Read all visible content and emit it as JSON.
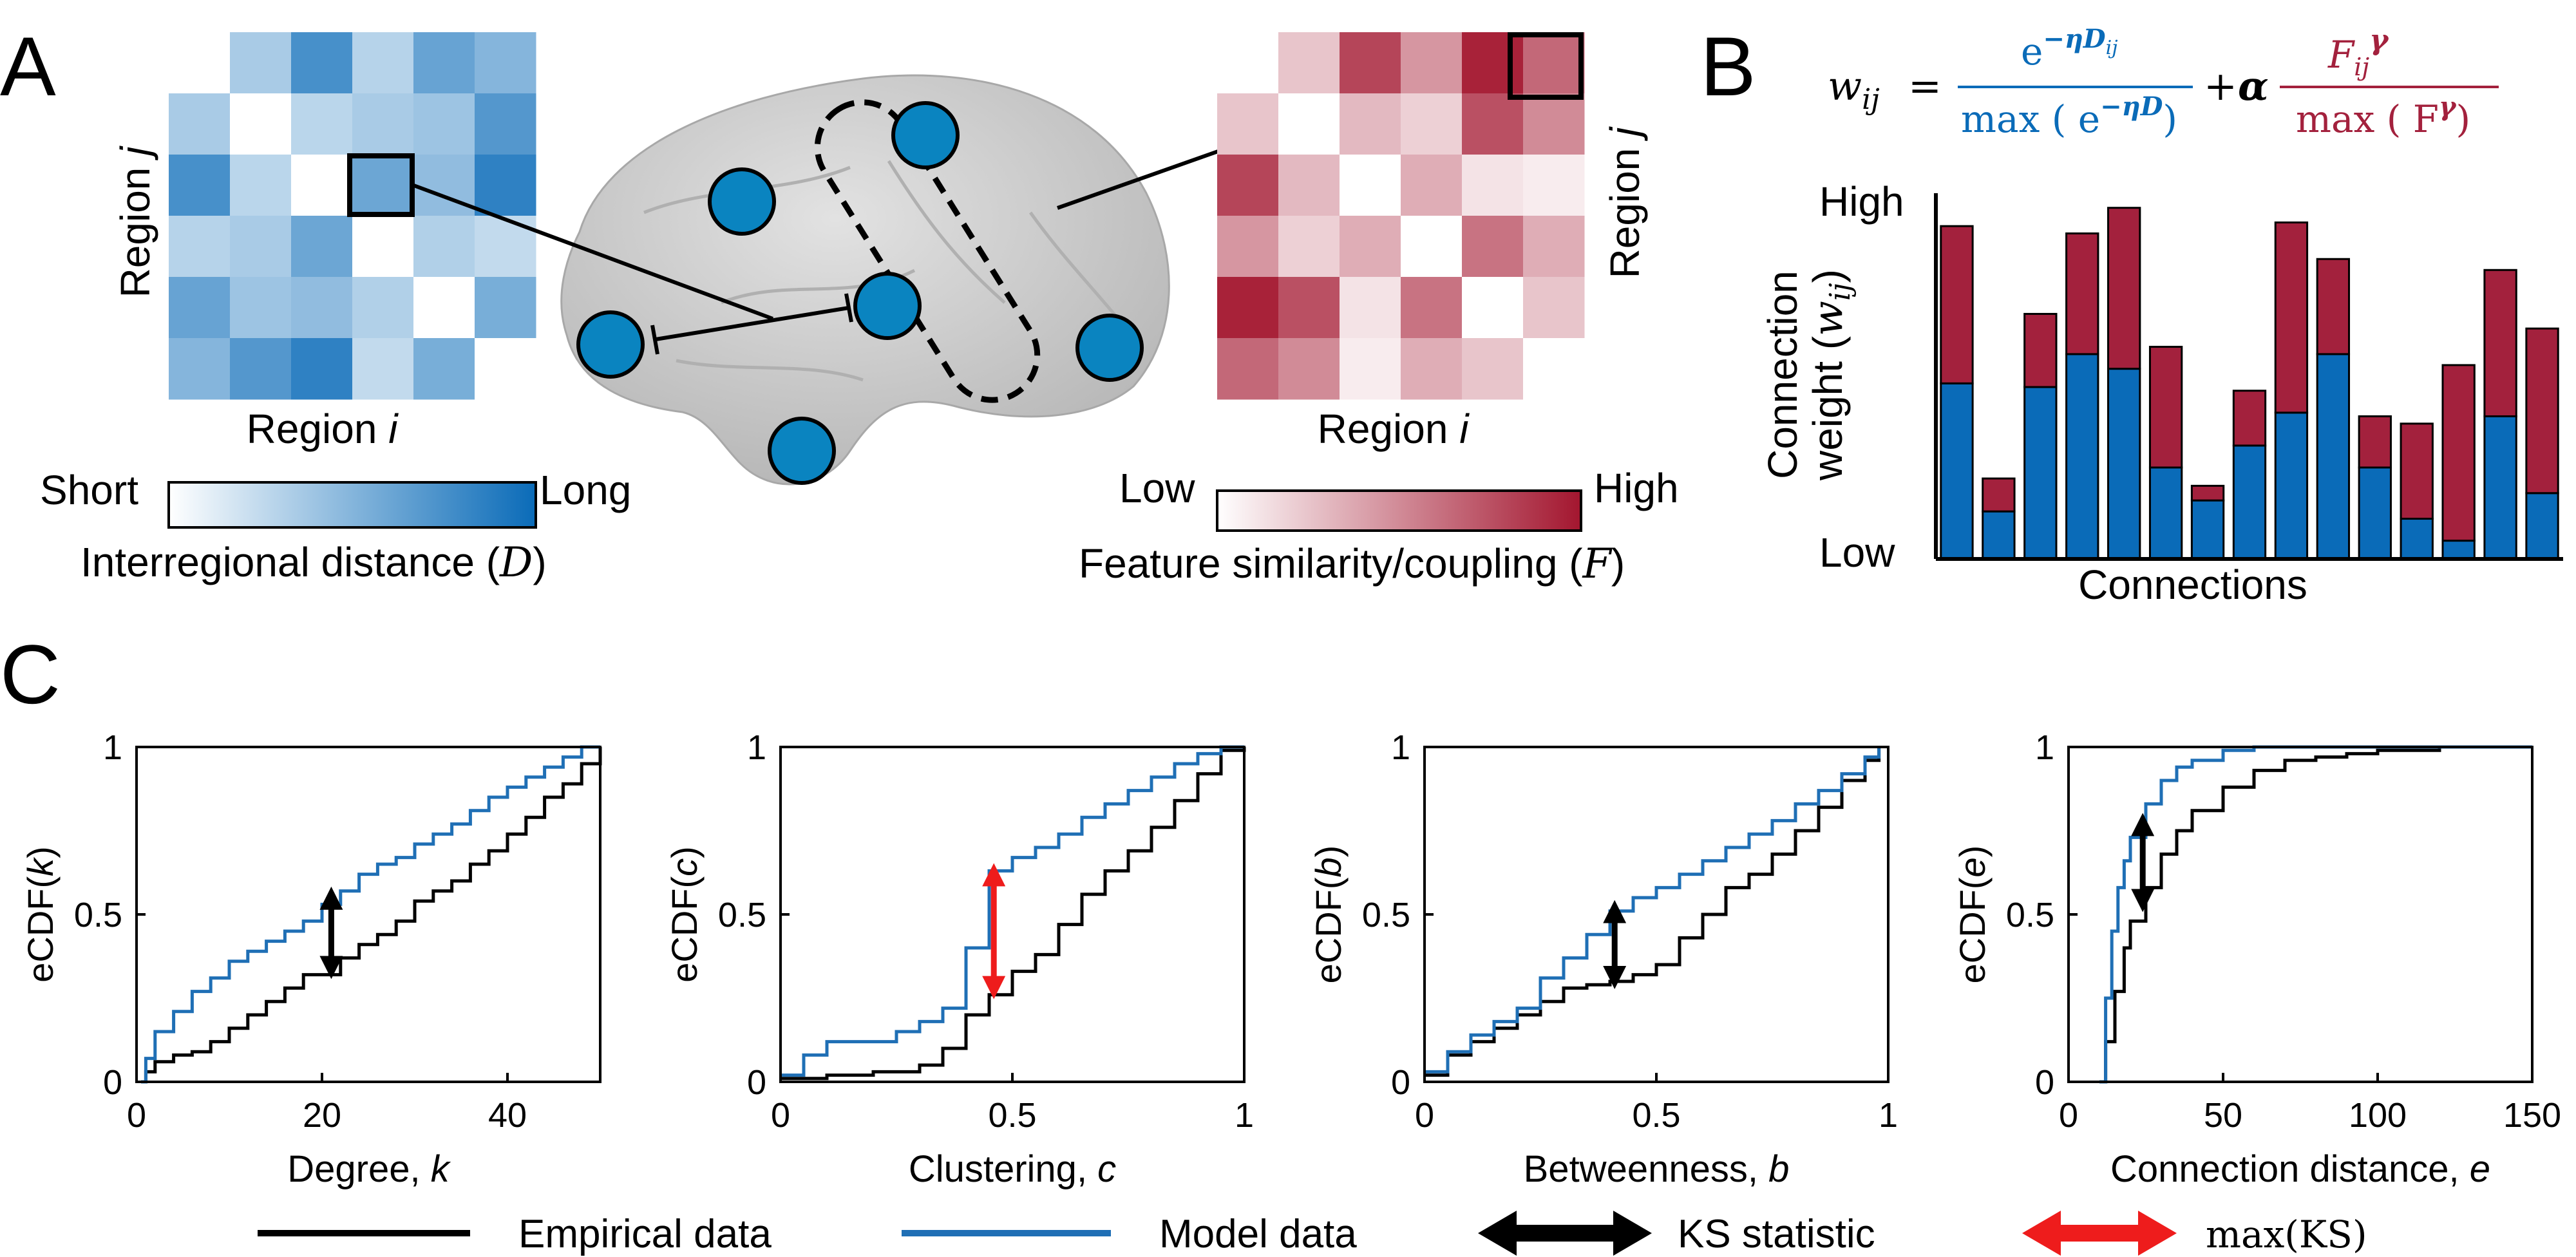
{
  "panels": {
    "A": {
      "letter": "A",
      "distance_axis": {
        "x": "Region",
        "x_var": "i",
        "y": "Region",
        "y_var": "j"
      },
      "similarity_axis": {
        "x": "Region",
        "x_var": "i",
        "y": "Region",
        "y_var": "j"
      },
      "distance_colorbar": {
        "low": "Short",
        "high": "Long",
        "caption": "Interregional distance",
        "symbol": "D"
      },
      "similarity_colorbar": {
        "low": "Low",
        "high": "High",
        "caption": "Feature similarity/coupling",
        "symbol": "F"
      },
      "distance_matrix": [
        [
          0.0,
          0.35,
          0.75,
          0.3,
          0.62,
          0.5
        ],
        [
          0.35,
          0.0,
          0.28,
          0.35,
          0.4,
          0.7
        ],
        [
          0.75,
          0.28,
          0.0,
          0.6,
          0.45,
          0.85
        ],
        [
          0.3,
          0.35,
          0.6,
          0.0,
          0.32,
          0.25
        ],
        [
          0.62,
          0.4,
          0.45,
          0.32,
          0.0,
          0.55
        ],
        [
          0.5,
          0.7,
          0.85,
          0.25,
          0.55,
          0.0
        ]
      ],
      "similarity_matrix": [
        [
          0.0,
          0.25,
          0.8,
          0.45,
          0.95,
          0.65
        ],
        [
          0.25,
          0.0,
          0.3,
          0.2,
          0.75,
          0.5
        ],
        [
          0.8,
          0.3,
          0.0,
          0.35,
          0.12,
          0.08
        ],
        [
          0.45,
          0.2,
          0.35,
          0.0,
          0.6,
          0.35
        ],
        [
          0.95,
          0.75,
          0.12,
          0.6,
          0.0,
          0.25
        ],
        [
          0.65,
          0.5,
          0.08,
          0.35,
          0.25,
          0.0
        ]
      ],
      "colors": {
        "distance_low": "#ffffff",
        "distance_high": "#0a6bb8",
        "similarity_low": "#ffffff",
        "similarity_high": "#a3162f",
        "node": "#0a84c0",
        "brain": "#c9c9c9"
      }
    },
    "B": {
      "letter": "B",
      "formula": {
        "lhs": "w",
        "lhs_sub": "ij",
        "exp_num": "e",
        "exp_num_power": "−ηD",
        "exp_num_power_sub": "ij",
        "exp_den": "max ( e",
        "exp_den_power": "−ηD",
        "exp_den_close": ")",
        "plus": "+",
        "alpha": "α",
        "feat_num": "F",
        "feat_num_sub": "ij",
        "feat_num_power": "γ",
        "feat_den": "max ( F",
        "feat_den_power": "γ",
        "feat_den_close": ")"
      },
      "colors": {
        "distance": "#0a6bb8",
        "feature": "#a3213d"
      },
      "chart_data": {
        "type": "bar",
        "stacked": true,
        "xlabel": "Connections",
        "ylabel_line1": "Connection",
        "ylabel_line2": "weight (",
        "ylabel_symbol": "w",
        "ylabel_sub": "ij",
        "ylabel_close": ")",
        "y_high": "High",
        "y_low": "Low",
        "ylim": [
          0,
          1
        ],
        "series": [
          {
            "values": [
              0.48,
              0.13,
              0.47,
              0.56,
              0.52,
              0.25,
              0.16,
              0.31,
              0.4,
              0.56,
              0.25,
              0.11,
              0.05,
              0.39,
              0.18
            ]
          },
          {
            "values": [
              0.43,
              0.09,
              0.2,
              0.33,
              0.44,
              0.33,
              0.04,
              0.15,
              0.52,
              0.26,
              0.14,
              0.26,
              0.48,
              0.4,
              0.45
            ]
          }
        ]
      }
    },
    "C": {
      "letter": "C",
      "legend": {
        "empirical": "Empirical data",
        "model": "Model data",
        "ks": "KS statistic",
        "maxks": "max(KS)"
      },
      "colors": {
        "empirical": "#000000",
        "model": "#1f6fb5",
        "ks_arrow": "#000000",
        "maxks_arrow": "#ee1c1c"
      },
      "chart_data": [
        {
          "type": "line",
          "ylabel": "eCDF(",
          "ylabel_var": "k",
          "ylabel_close": ")",
          "xlabel": "Degree, ",
          "xlabel_var": "k",
          "xlim": [
            0,
            50
          ],
          "ylim": [
            0,
            1
          ],
          "xticks": [
            "0",
            "20",
            "40"
          ],
          "xtick_values": [
            0,
            20,
            40
          ],
          "yticks": [
            "0",
            "0.5",
            "1"
          ],
          "ytick_values": [
            0,
            0.5,
            1
          ],
          "series": [
            {
              "name": "Empirical data",
              "x": [
                0.5,
                1,
                2,
                4,
                6,
                8,
                10,
                12,
                14,
                16,
                18,
                20,
                22,
                24,
                26,
                28,
                30,
                32,
                34,
                36,
                38,
                40,
                42,
                44,
                46,
                48,
                50
              ],
              "y": [
                0,
                0.03,
                0.06,
                0.08,
                0.09,
                0.12,
                0.16,
                0.2,
                0.24,
                0.28,
                0.32,
                0.32,
                0.37,
                0.41,
                0.44,
                0.48,
                0.54,
                0.57,
                0.6,
                0.65,
                0.69,
                0.74,
                0.79,
                0.85,
                0.89,
                0.95,
                1
              ]
            },
            {
              "name": "Model data",
              "x": [
                0.5,
                1,
                2,
                4,
                6,
                8,
                10,
                12,
                14,
                16,
                18,
                20,
                22,
                24,
                26,
                28,
                30,
                32,
                34,
                36,
                38,
                40,
                42,
                44,
                46,
                48,
                50
              ],
              "y": [
                0,
                0.07,
                0.15,
                0.21,
                0.27,
                0.31,
                0.36,
                0.39,
                0.42,
                0.45,
                0.48,
                0.53,
                0.57,
                0.62,
                0.65,
                0.67,
                0.71,
                0.74,
                0.77,
                0.81,
                0.85,
                0.88,
                0.91,
                0.94,
                0.97,
                1,
                1
              ]
            }
          ],
          "ks": {
            "x": 21,
            "y1": 0.33,
            "y2": 0.56,
            "kind": "ks"
          }
        },
        {
          "type": "line",
          "ylabel": "eCDF(",
          "ylabel_var": "c",
          "ylabel_close": ")",
          "xlabel": "Clustering, ",
          "xlabel_var": "c",
          "xlim": [
            0,
            1
          ],
          "ylim": [
            0,
            1
          ],
          "xticks": [
            "0",
            "0.5",
            "1"
          ],
          "xtick_values": [
            0,
            0.5,
            1
          ],
          "yticks": [
            "0",
            "0.5",
            "1"
          ],
          "ytick_values": [
            0,
            0.5,
            1
          ],
          "series": [
            {
              "name": "Empirical data",
              "x": [
                0,
                0.1,
                0.2,
                0.3,
                0.35,
                0.4,
                0.45,
                0.5,
                0.55,
                0.6,
                0.65,
                0.7,
                0.75,
                0.8,
                0.85,
                0.9,
                0.95,
                1
              ],
              "y": [
                0.01,
                0.02,
                0.03,
                0.05,
                0.1,
                0.2,
                0.26,
                0.33,
                0.38,
                0.47,
                0.56,
                0.63,
                0.69,
                0.76,
                0.84,
                0.92,
                0.99,
                1
              ]
            },
            {
              "name": "Model data",
              "x": [
                0,
                0.05,
                0.1,
                0.2,
                0.25,
                0.3,
                0.35,
                0.4,
                0.45,
                0.5,
                0.55,
                0.6,
                0.65,
                0.7,
                0.75,
                0.8,
                0.85,
                0.9,
                0.95,
                1
              ],
              "y": [
                0.02,
                0.08,
                0.12,
                0.12,
                0.15,
                0.18,
                0.22,
                0.4,
                0.63,
                0.67,
                0.7,
                0.74,
                0.79,
                0.83,
                0.87,
                0.91,
                0.95,
                0.98,
                1,
                1
              ]
            }
          ],
          "ks": {
            "x": 0.46,
            "y1": 0.27,
            "y2": 0.63,
            "kind": "maxks"
          }
        },
        {
          "type": "line",
          "ylabel": "eCDF(",
          "ylabel_var": "b",
          "ylabel_close": ")",
          "xlabel": "Betweenness, ",
          "xlabel_var": "b",
          "xlim": [
            0,
            1
          ],
          "ylim": [
            0,
            1
          ],
          "xticks": [
            "0",
            "0.5",
            "1"
          ],
          "xtick_values": [
            0,
            0.5,
            1
          ],
          "yticks": [
            "0",
            "0.5",
            "1"
          ],
          "ytick_values": [
            0,
            0.5,
            1
          ],
          "series": [
            {
              "name": "Empirical data",
              "x": [
                0,
                0.05,
                0.1,
                0.15,
                0.2,
                0.25,
                0.3,
                0.35,
                0.4,
                0.45,
                0.5,
                0.55,
                0.6,
                0.65,
                0.7,
                0.75,
                0.8,
                0.85,
                0.9,
                0.95,
                0.98
              ],
              "y": [
                0.02,
                0.08,
                0.12,
                0.16,
                0.2,
                0.24,
                0.28,
                0.29,
                0.3,
                0.32,
                0.35,
                0.43,
                0.5,
                0.58,
                0.62,
                0.68,
                0.75,
                0.82,
                0.9,
                0.96,
                1
              ]
            },
            {
              "name": "Model data",
              "x": [
                0,
                0.05,
                0.1,
                0.15,
                0.2,
                0.25,
                0.3,
                0.35,
                0.4,
                0.45,
                0.5,
                0.55,
                0.6,
                0.65,
                0.7,
                0.75,
                0.8,
                0.85,
                0.9,
                0.95,
                0.98
              ],
              "y": [
                0.03,
                0.09,
                0.14,
                0.18,
                0.22,
                0.31,
                0.37,
                0.44,
                0.51,
                0.55,
                0.58,
                0.62,
                0.66,
                0.7,
                0.74,
                0.78,
                0.83,
                0.87,
                0.92,
                0.97,
                1
              ]
            }
          ],
          "ks": {
            "x": 0.41,
            "y1": 0.3,
            "y2": 0.52,
            "kind": "ks"
          }
        },
        {
          "type": "line",
          "ylabel": "eCDF(",
          "ylabel_var": "e",
          "ylabel_close": ")",
          "xlabel": "Connection distance, ",
          "xlabel_var": "e",
          "xlim": [
            0,
            150
          ],
          "ylim": [
            0,
            1
          ],
          "xticks": [
            "0",
            "50",
            "100",
            "150"
          ],
          "xtick_values": [
            0,
            50,
            100,
            150
          ],
          "yticks": [
            "0",
            "0.5",
            "1"
          ],
          "ytick_values": [
            0,
            0.5,
            1
          ],
          "series": [
            {
              "name": "Empirical data",
              "x": [
                10,
                12,
                15,
                18,
                20,
                25,
                30,
                35,
                40,
                50,
                60,
                70,
                80,
                90,
                100,
                120,
                150
              ],
              "y": [
                0,
                0.12,
                0.27,
                0.4,
                0.48,
                0.58,
                0.68,
                0.75,
                0.81,
                0.88,
                0.93,
                0.96,
                0.97,
                0.98,
                0.99,
                1,
                1
              ]
            },
            {
              "name": "Model data",
              "x": [
                10,
                12,
                14,
                16,
                18,
                20,
                25,
                30,
                35,
                40,
                50,
                60,
                80,
                100,
                150
              ],
              "y": [
                0,
                0.25,
                0.45,
                0.58,
                0.66,
                0.73,
                0.83,
                0.9,
                0.94,
                0.96,
                0.99,
                1,
                1,
                1,
                1
              ]
            }
          ],
          "ks": {
            "x": 24,
            "y1": 0.53,
            "y2": 0.78,
            "kind": "ks"
          }
        }
      ]
    }
  }
}
